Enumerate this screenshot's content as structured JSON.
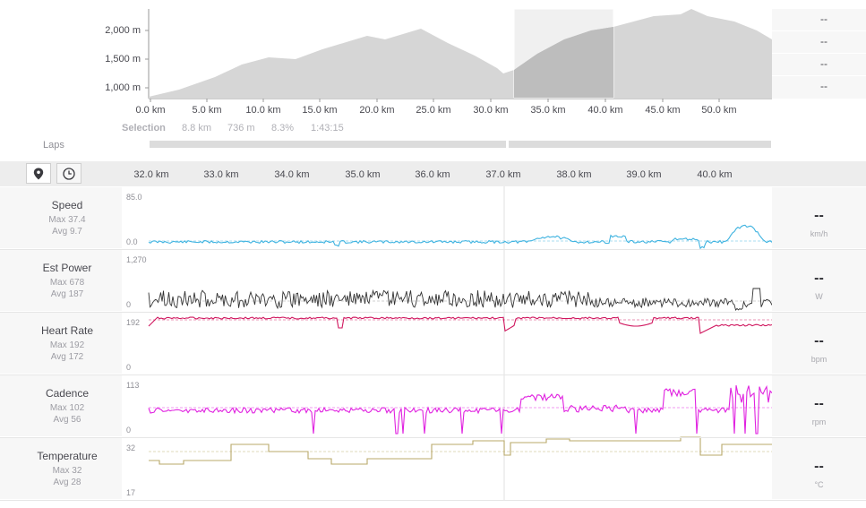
{
  "overview": {
    "y_ticks": [
      "2,000 m",
      "1,500 m",
      "1,000 m"
    ],
    "x_ticks": [
      "0.0 km",
      "5.0 km",
      "10.0 km",
      "15.0 km",
      "20.0 km",
      "25.0 km",
      "30.0 km",
      "35.0 km",
      "40.0 km",
      "45.0 km",
      "50.0 km"
    ],
    "side_values": [
      "--",
      "--",
      "--",
      "--"
    ],
    "elevation_color": "#d6d6d6",
    "selection_color": "#bdbdbd"
  },
  "selection": {
    "label": "Selection",
    "distance": "8.8 km",
    "elevation": "736 m",
    "grade": "8.3%",
    "time": "1:43:15"
  },
  "laps": {
    "label": "Laps"
  },
  "toolbar": {
    "buttons": [
      {
        "icon": "map-pin-icon",
        "active": true
      },
      {
        "icon": "clock-icon",
        "active": false
      }
    ]
  },
  "detail_x_ticks": [
    "32.0 km",
    "33.0 km",
    "34.0 km",
    "35.0 km",
    "36.0 km",
    "37.0 km",
    "38.0 km",
    "39.0 km",
    "40.0 km"
  ],
  "metrics": [
    {
      "title": "Speed",
      "max": "Max 37.4",
      "avg": "Avg 9.7",
      "scale_top": "85.0",
      "scale_bottom": "0.0",
      "value": "--",
      "unit": "km/h",
      "color": "#3fb3e0"
    },
    {
      "title": "Est Power",
      "max": "Max 678",
      "avg": "Avg 187",
      "scale_top": "1,270",
      "scale_bottom": "0",
      "value": "--",
      "unit": "W",
      "color": "#333333"
    },
    {
      "title": "Heart Rate",
      "max": "Max 192",
      "avg": "Avg 172",
      "scale_top": "192",
      "scale_bottom": "0",
      "value": "--",
      "unit": "bpm",
      "color": "#d0165e"
    },
    {
      "title": "Cadence",
      "max": "Max 102",
      "avg": "Avg 56",
      "scale_top": "113",
      "scale_bottom": "0",
      "value": "--",
      "unit": "rpm",
      "color": "#e021e0"
    },
    {
      "title": "Temperature",
      "max": "Max 32",
      "avg": "Avg 28",
      "scale_top": "32",
      "scale_bottom": "17",
      "value": "--",
      "unit": "°C",
      "color": "#b8a86a"
    }
  ]
}
